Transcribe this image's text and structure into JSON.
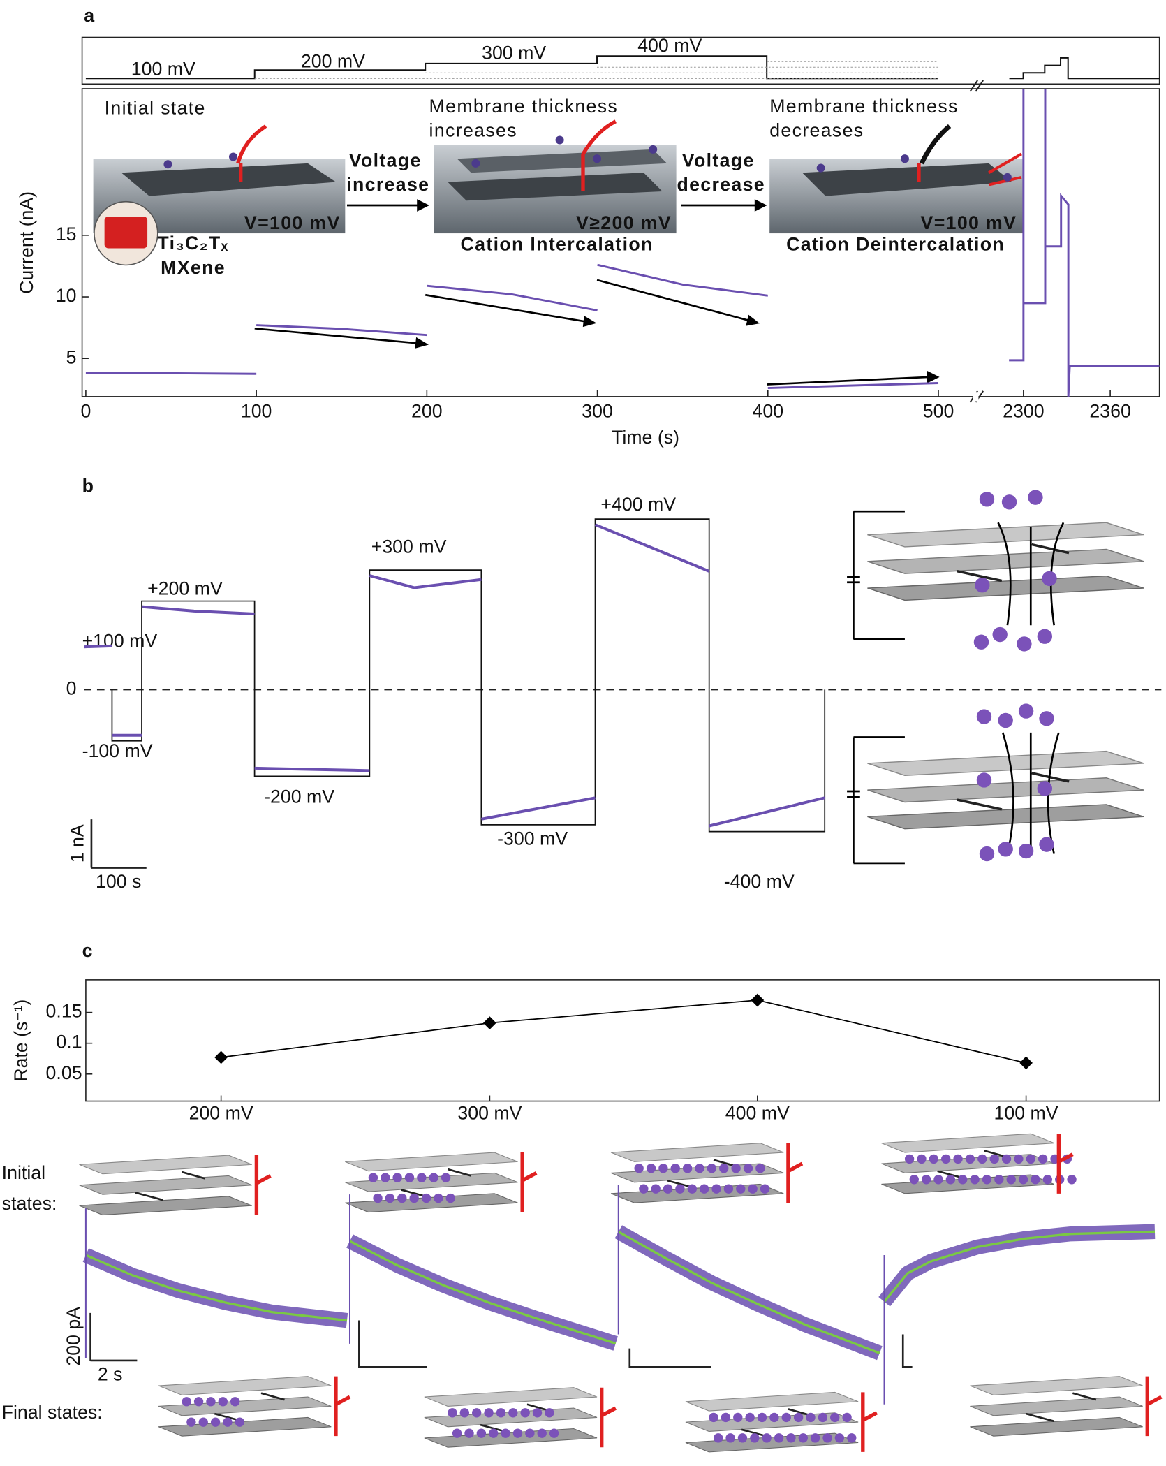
{
  "chart_data": [
    {
      "type": "line",
      "panel_label": "a",
      "ylabel": "Current (nA)",
      "xlabel": "Time (s)",
      "xlim": [
        0,
        2394
      ],
      "xbreak": [
        520,
        2276
      ],
      "ylim": [
        1.9,
        26.9
      ],
      "yticks": [
        5,
        10,
        15
      ],
      "xticks": [
        0,
        100,
        200,
        300,
        400,
        500,
        2300,
        2360
      ],
      "protocol_labels": [
        "100 mV",
        "200 mV",
        "300 mV",
        "400 mV"
      ],
      "color": "#6a4fb0",
      "x": [
        0,
        50,
        100,
        100,
        100,
        150,
        200,
        200,
        200,
        250,
        300,
        300,
        300,
        350,
        400,
        400,
        400,
        450,
        500,
        500,
        2290,
        2300,
        2300,
        2300,
        2315,
        2315,
        2315,
        2326,
        2326,
        2331,
        2331,
        2332,
        2394
      ],
      "values": [
        3.8,
        3.8,
        3.75,
        null,
        7.7,
        7.4,
        6.9,
        null,
        10.9,
        10.2,
        8.9,
        null,
        12.6,
        11.0,
        10.1,
        null,
        2.6,
        2.8,
        3.0,
        null,
        4.85,
        4.85,
        26.9,
        9.5,
        9.5,
        26.9,
        14.1,
        14.1,
        18.2,
        17.5,
        1.9,
        4.4,
        4.4
      ],
      "annotations": [
        "Initial state",
        "Membrane thickness",
        "increases",
        "Membrane thickness",
        "decreases",
        "Voltage",
        "increase",
        "Voltage",
        "decrease",
        "V=100 mV",
        "V≥200 mV",
        "V=100 mV",
        "Cation Intercalation",
        "Cation Deintercalation",
        "Ti₃C₂Tₓ",
        "MXene"
      ]
    },
    {
      "type": "line",
      "panel_label": "b",
      "color": "#6a4fb0",
      "yticks": [
        0
      ],
      "scalebars": [
        {
          "value": 1,
          "label": "1 nA"
        },
        {
          "value": 100,
          "label": "100 s"
        }
      ],
      "x": [
        0,
        51,
        51,
        51,
        105,
        105,
        105,
        200,
        310,
        310,
        310,
        519,
        519,
        519,
        600,
        722,
        722,
        722,
        929,
        929,
        929,
        1136,
        1136,
        1136,
        1346
      ],
      "values": [
        0.88,
        0.9,
        null,
        -0.94,
        -0.94,
        null,
        1.71,
        1.62,
        1.56,
        null,
        -1.62,
        -1.67,
        null,
        2.35,
        2.1,
        2.27,
        null,
        -2.67,
        -2.23,
        null,
        3.4,
        2.44,
        null,
        -2.81,
        -2.23
      ],
      "segment_labels": [
        "+100 mV",
        "-100 mV",
        "+200 mV",
        "-200 mV",
        "+300 mV",
        "-300 mV",
        "+400 mV",
        "-400 mV"
      ]
    },
    {
      "type": "line",
      "panel_label": "c",
      "ylabel": "Rate (s⁻¹)",
      "categories": [
        "200 mV",
        "300 mV",
        "400 mV",
        "100 mV"
      ],
      "values": [
        0.077,
        0.133,
        0.17,
        0.068
      ],
      "ylim": [
        0.006,
        0.203
      ],
      "yticks": [
        0.05,
        0.1,
        0.15
      ],
      "color": "#000000"
    },
    {
      "type": "line",
      "color": "#6a4fb0",
      "fit_color": "#7ac943",
      "scalebars": [
        {
          "value": 200,
          "label": "200 pA"
        },
        {
          "value": 2,
          "label": "2 s"
        }
      ],
      "initial_label": [
        "Initial",
        "states:"
      ],
      "final_label": "Final states:",
      "traces": [
        {
          "x": [
            0,
            2,
            4,
            6,
            8,
            11.2
          ],
          "values": [
            0,
            -85,
            -150,
            -200,
            -240,
            -275
          ]
        },
        {
          "x": [
            0,
            2,
            4,
            6,
            8,
            11.4
          ],
          "values": [
            0,
            -100,
            -185,
            -260,
            -325,
            -430
          ]
        },
        {
          "x": [
            0,
            2,
            4,
            6,
            8,
            11.2
          ],
          "values": [
            0,
            -110,
            -215,
            -305,
            -390,
            -510
          ]
        },
        {
          "x": [
            0,
            1,
            2,
            4,
            6,
            8,
            11.6
          ],
          "values": [
            0,
            120,
            170,
            230,
            265,
            285,
            295
          ]
        }
      ]
    }
  ]
}
